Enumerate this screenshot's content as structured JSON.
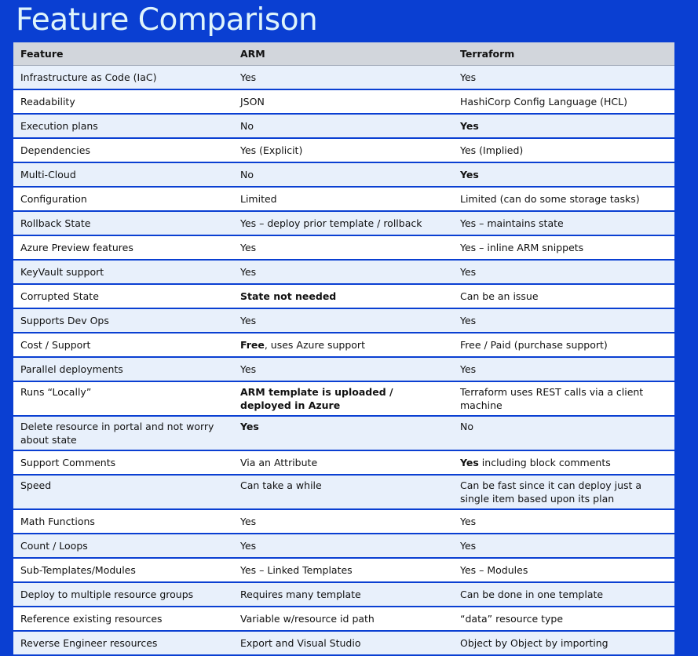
{
  "title": "Feature Comparison",
  "table": {
    "headers": [
      "Feature",
      "ARM",
      "Terraform"
    ],
    "rows": [
      {
        "feature": "Infrastructure as Code (IaC)",
        "arm": "Yes",
        "arm_bold": "",
        "terraform": "Yes",
        "terraform_bold": ""
      },
      {
        "feature": "Readability",
        "arm": "JSON",
        "arm_bold": "",
        "terraform": "HashiCorp Config Language (HCL)",
        "terraform_bold": ""
      },
      {
        "feature": "Execution plans",
        "arm": "No",
        "arm_bold": "",
        "terraform": "",
        "terraform_bold": "Yes"
      },
      {
        "feature": "Dependencies",
        "arm": "Yes (Explicit)",
        "arm_bold": "",
        "terraform": "Yes (Implied)",
        "terraform_bold": ""
      },
      {
        "feature": "Multi-Cloud",
        "arm": "No",
        "arm_bold": "",
        "terraform": "",
        "terraform_bold": "Yes"
      },
      {
        "feature": "Configuration",
        "arm": "Limited",
        "arm_bold": "",
        "terraform": "Limited (can do some storage tasks)",
        "terraform_bold": ""
      },
      {
        "feature": "Rollback State",
        "arm": "Yes – deploy prior template / rollback",
        "arm_bold": "",
        "terraform": "Yes – maintains state",
        "terraform_bold": ""
      },
      {
        "feature": "Azure Preview features",
        "arm": "Yes",
        "arm_bold": "",
        "terraform": "Yes – inline ARM snippets",
        "terraform_bold": ""
      },
      {
        "feature": "KeyVault support",
        "arm": "Yes",
        "arm_bold": "",
        "terraform": "Yes",
        "terraform_bold": ""
      },
      {
        "feature": "Corrupted State",
        "arm": "",
        "arm_bold": "State not needed",
        "terraform": "Can be an issue",
        "terraform_bold": ""
      },
      {
        "feature": "Supports Dev Ops",
        "arm": "Yes",
        "arm_bold": "",
        "terraform": "Yes",
        "terraform_bold": ""
      },
      {
        "feature": "Cost / Support",
        "arm": ", uses Azure support",
        "arm_bold": "Free",
        "terraform": "Free / Paid (purchase support)",
        "terraform_bold": ""
      },
      {
        "feature": "Parallel deployments",
        "arm": "Yes",
        "arm_bold": "",
        "terraform": "Yes",
        "terraform_bold": ""
      },
      {
        "feature": "Runs “Locally”",
        "arm": "",
        "arm_bold": "ARM template is uploaded / deployed in Azure",
        "terraform": "Terraform uses REST calls via a client machine",
        "terraform_bold": ""
      },
      {
        "feature": "Delete resource in portal and not worry about state",
        "arm": "",
        "arm_bold": "Yes",
        "terraform": "No",
        "terraform_bold": ""
      },
      {
        "feature": "Support Comments",
        "arm": "Via an Attribute",
        "arm_bold": "",
        "terraform": " including block comments",
        "terraform_bold": "Yes"
      },
      {
        "feature": "Speed",
        "arm": "Can take a while",
        "arm_bold": "",
        "terraform": "Can be fast since it can deploy just a single item based upon its plan",
        "terraform_bold": ""
      },
      {
        "feature": "Math Functions",
        "arm": "Yes",
        "arm_bold": "",
        "terraform": "Yes",
        "terraform_bold": ""
      },
      {
        "feature": "Count / Loops",
        "arm": "Yes",
        "arm_bold": "",
        "terraform": "Yes",
        "terraform_bold": ""
      },
      {
        "feature": "Sub-Templates/Modules",
        "arm": "Yes – Linked Templates",
        "arm_bold": "",
        "terraform": "Yes – Modules",
        "terraform_bold": ""
      },
      {
        "feature": "Deploy to multiple resource groups",
        "arm": "Requires many template",
        "arm_bold": "",
        "terraform": "Can be done in one template",
        "terraform_bold": ""
      },
      {
        "feature": "Reference existing resources",
        "arm": "Variable w/resource id path",
        "arm_bold": "",
        "terraform": "“data” resource type",
        "terraform_bold": ""
      },
      {
        "feature": "Reverse Engineer resources",
        "arm": "Export and Visual Studio",
        "arm_bold": "",
        "terraform": "Object by Object by importing",
        "terraform_bold": ""
      }
    ]
  }
}
